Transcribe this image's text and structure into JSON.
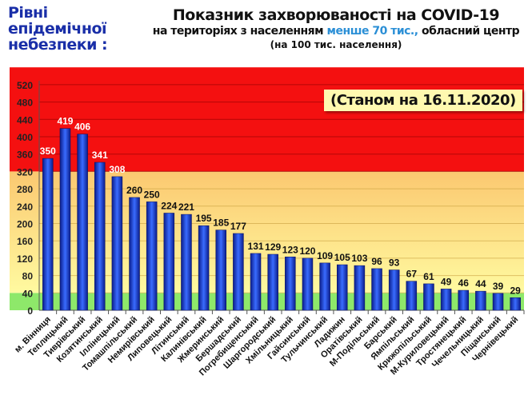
{
  "header": {
    "levels_label": "Рівні епідемічної небезпеки :",
    "title": "Показник захворюваності на COVID-19",
    "subtitle_before": "на територіях з населенням ",
    "subtitle_highlight": "менше 70 тис.,",
    "subtitle_after": " обласний центр",
    "unit": "(на 100  тис. населення)"
  },
  "chart_data": {
    "type": "bar",
    "annotation": "(Станом на 16.11.2020)",
    "categories": [
      "м. Вінниця",
      "Теплицький",
      "Тиврівський",
      "Козятинський",
      "Іллінецький",
      "Томашпільський",
      "Немирівський",
      "Липовецький",
      "Літинський",
      "Калинівський",
      "Жмеринський",
      "Бершадський",
      "Погребищенський",
      "Шаргородський",
      "Хмільницький",
      "Гайсинський",
      "Тульчинський",
      "Ладижин",
      "Оратівський",
      "М-Подільський",
      "Барський",
      "Ямпільський",
      "Крижопільський",
      "М-Куриловецький",
      "Тростянецький",
      "Чечельницький",
      "Піщанський",
      "Чернівецький"
    ],
    "values": [
      350,
      419,
      406,
      341,
      308,
      260,
      250,
      224,
      221,
      195,
      185,
      177,
      131,
      129,
      123,
      120,
      109,
      105,
      103,
      96,
      93,
      67,
      61,
      49,
      46,
      44,
      39,
      29
    ],
    "yticks": [
      0,
      40,
      80,
      120,
      160,
      200,
      240,
      280,
      320,
      360,
      400,
      440,
      480,
      520
    ],
    "ylim": [
      0,
      560
    ],
    "bands": [
      {
        "from": 0,
        "to": 40,
        "color": "#8ee86a"
      },
      {
        "from": 40,
        "to": 320,
        "color": "#fbd56e"
      },
      {
        "from": 320,
        "to": 560,
        "color": "#f41010"
      }
    ],
    "bar_color": "#1f3fd8",
    "grid": true
  }
}
